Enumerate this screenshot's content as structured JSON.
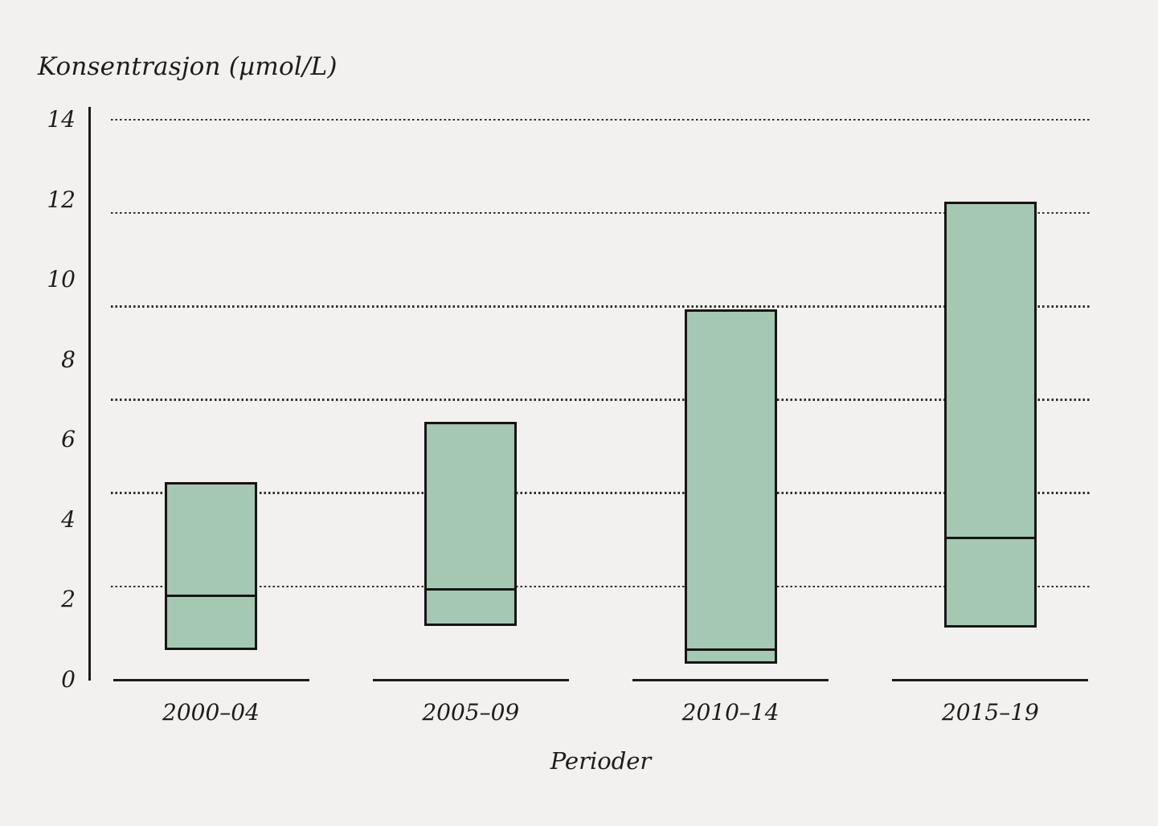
{
  "page": {
    "background_color": "#f2f1ef",
    "ink_color": "#1d1c1b",
    "bar_outline_color": "#161514",
    "grid_dot_color": "#2e2c29"
  },
  "chart_data": {
    "type": "bar",
    "subtype": "floating-range-bars-with-median",
    "title": "Konsentrasjon (µmol/L)",
    "xlabel": "Perioder",
    "ylabel": "Konsentrasjon (µmol/L)",
    "categories": [
      "2000–04",
      "2005–09",
      "2010–14",
      "2015–19"
    ],
    "series": [
      {
        "name": "min",
        "values": [
          0.75,
          1.35,
          0.4,
          1.3
        ]
      },
      {
        "name": "median",
        "values": [
          2.1,
          2.25,
          0.75,
          3.55
        ]
      },
      {
        "name": "max",
        "values": [
          4.95,
          6.45,
          9.25,
          11.95
        ]
      }
    ],
    "ylim": [
      0,
      14
    ],
    "y_ticks": [
      14,
      12,
      10,
      8,
      6,
      4,
      2,
      0
    ],
    "gridlines_y": [
      14,
      11.6667,
      9.3333,
      7,
      4.6667,
      2.3333
    ],
    "grid_style": "dotted",
    "legend_position": "none",
    "bar_fill_color": "#a5c8b3",
    "bar_border_color": "#161514"
  }
}
